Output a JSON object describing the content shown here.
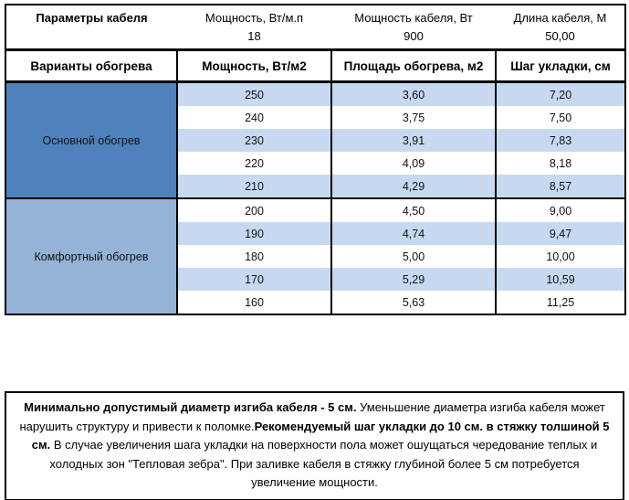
{
  "top_table": {
    "param_header": "Параметры кабеля",
    "columns": [
      {
        "label": "Мощность, Вт/м.п",
        "value": "18"
      },
      {
        "label": "Мощность кабеля, Вт",
        "value": "900"
      },
      {
        "label": "Длина кабеля, М",
        "value": "50,00"
      }
    ]
  },
  "main_table": {
    "header": {
      "variants": "Варианты обогрева",
      "power": "Мощность, Вт/м2",
      "area": "Площадь обогрева, м2",
      "step": "Шаг укладки, см"
    },
    "sections": [
      {
        "label": "Основной обогрев",
        "color": "#4F81BD",
        "rows": [
          {
            "power": "250",
            "area": "3,60",
            "step": "7,20"
          },
          {
            "power": "240",
            "area": "3,75",
            "step": "7,50"
          },
          {
            "power": "230",
            "area": "3,91",
            "step": "7,83"
          },
          {
            "power": "220",
            "area": "4,09",
            "step": "8,18"
          },
          {
            "power": "210",
            "area": "4,29",
            "step": "8,57"
          }
        ]
      },
      {
        "label": "Комфортный обогрев",
        "color": "#95B3D7",
        "rows": [
          {
            "power": "200",
            "area": "4,50",
            "step": "9,00"
          },
          {
            "power": "190",
            "area": "4,74",
            "step": "9,47"
          },
          {
            "power": "180",
            "area": "5,00",
            "step": "10,00"
          },
          {
            "power": "170",
            "area": "5,29",
            "step": "10,59"
          },
          {
            "power": "160",
            "area": "5,63",
            "step": "11,25"
          }
        ]
      }
    ]
  },
  "note": {
    "bold1": "Минимально допустимый диаметр изгиба кабеля - 5 см.",
    "text1": "  Уменьшение диаметра изгиба кабеля может нарушить структуру и привести к поломке.",
    "bold2": "Рекомендуемый шаг укладки до 10 см. в стяжку толшиной 5 см.",
    "text2": " В  случае увеличения шага укладки на поверхности пола может ошущаться чередование теплых и холодных зон \"Тепловая зебра\". При заливке кабеля в стяжку глубиной более 5 см потребуется увеличение мощности."
  },
  "colors": {
    "accent_dark": "#4F81BD",
    "accent_medium": "#95B3D7",
    "row_stripe": "#C6D9F0",
    "border": "#000000",
    "background": "#FFFFFF"
  }
}
